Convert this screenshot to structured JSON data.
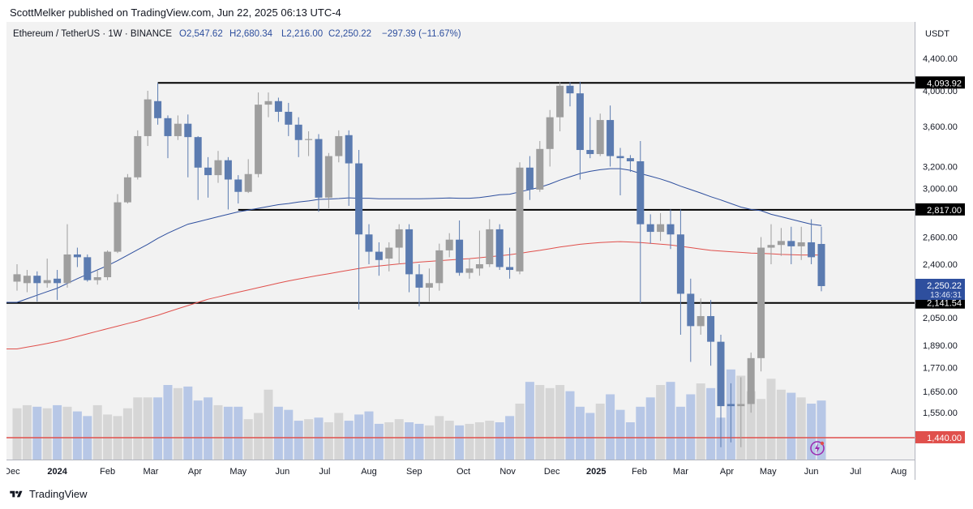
{
  "header": {
    "published": "ScottMelker published on TradingView.com, Jun 22, 2025 06:13 UTC-4"
  },
  "footer": {
    "brand": "TradingView"
  },
  "colors": {
    "up": "#9e9e9e",
    "down": "#5b7bb0",
    "ma_blue": "#2e4f9e",
    "ma_red": "#e0504c",
    "vol_up": "#d6d6d6",
    "vol_down": "#b7c7e6",
    "hline": "#000000",
    "red_line": "#e0504c"
  },
  "chart_data": {
    "type": "candlestick",
    "symbol": {
      "name": "Ethereum / TetherUS · 1W · BINANCE",
      "o": "O2,547.62",
      "h": "H2,680.34",
      "l": "L2,216.00",
      "c": "C2,250.22",
      "chg": "−297.39 (−11.67%)"
    },
    "currency": "USDT",
    "y_scale": "log",
    "ylim": [
      1350,
      4900
    ],
    "price_ticks": [
      "4,400.00",
      "4,000.00",
      "3,600.00",
      "3,200.00",
      "3,000.00",
      "2,600.00",
      "2,400.00",
      "2,050.00",
      "1,890.00",
      "1,770.00",
      "1,650.00",
      "1,550.00"
    ],
    "price_tick_values": [
      4400,
      4000,
      3600,
      3200,
      3000,
      2600,
      2400,
      2050,
      1890,
      1770,
      1650,
      1550
    ],
    "horizontal_levels": [
      {
        "label": "4,093.92",
        "value": 4093.92,
        "start_week": 14,
        "style": "black"
      },
      {
        "label": "2,817.00",
        "value": 2817,
        "start_week": 22,
        "style": "black"
      },
      {
        "label": "2,141.54",
        "value": 2141.54,
        "start_week": 0,
        "style": "black"
      },
      {
        "label": "1,440.00",
        "value": 1440,
        "start_week": 0,
        "style": "red"
      }
    ],
    "last_price": {
      "label": "2,250.22",
      "countdown": "13:46:31",
      "value": 2250.22
    },
    "x_labels": [
      {
        "label": "Dec",
        "week": -0.5,
        "bold": false
      },
      {
        "label": "2024",
        "week": 4,
        "bold": true
      },
      {
        "label": "Feb",
        "week": 9,
        "bold": false
      },
      {
        "label": "Mar",
        "week": 13.3,
        "bold": false
      },
      {
        "label": "Apr",
        "week": 17.7,
        "bold": false
      },
      {
        "label": "May",
        "week": 22,
        "bold": false
      },
      {
        "label": "Jun",
        "week": 26.4,
        "bold": false
      },
      {
        "label": "Jul",
        "week": 30.6,
        "bold": false
      },
      {
        "label": "Aug",
        "week": 35,
        "bold": false
      },
      {
        "label": "Sep",
        "week": 39.5,
        "bold": false
      },
      {
        "label": "Oct",
        "week": 44.4,
        "bold": false
      },
      {
        "label": "Nov",
        "week": 48.8,
        "bold": false
      },
      {
        "label": "Dec",
        "week": 53.2,
        "bold": false
      },
      {
        "label": "2025",
        "week": 57.6,
        "bold": true
      },
      {
        "label": "Feb",
        "week": 61.9,
        "bold": false
      },
      {
        "label": "Mar",
        "week": 66,
        "bold": false
      },
      {
        "label": "Apr",
        "week": 70.6,
        "bold": false
      },
      {
        "label": "May",
        "week": 74.7,
        "bold": false
      },
      {
        "label": "Jun",
        "week": 79,
        "bold": false
      },
      {
        "label": "Jul",
        "week": 83.4,
        "bold": false
      },
      {
        "label": "Aug",
        "week": 87.7,
        "bold": false
      }
    ],
    "candles": [
      [
        2280,
        2330,
        2220,
        2400
      ],
      [
        2270,
        2320,
        2210,
        2360
      ],
      [
        2320,
        2270,
        2150,
        2350
      ],
      [
        2270,
        2290,
        2240,
        2440
      ],
      [
        2300,
        2270,
        2160,
        2360
      ],
      [
        2270,
        2470,
        2240,
        2700
      ],
      [
        2470,
        2450,
        2380,
        2520
      ],
      [
        2450,
        2290,
        2280,
        2470
      ],
      [
        2290,
        2310,
        2260,
        2360
      ],
      [
        2310,
        2490,
        2290,
        2500
      ],
      [
        2490,
        2880,
        2480,
        2950
      ],
      [
        2880,
        3100,
        2870,
        3130
      ],
      [
        3100,
        3500,
        3080,
        3560
      ],
      [
        3500,
        3900,
        3400,
        4000
      ],
      [
        3880,
        3690,
        3620,
        4093.92
      ],
      [
        3690,
        3500,
        3280,
        3720
      ],
      [
        3500,
        3630,
        3460,
        3720
      ],
      [
        3630,
        3490,
        3100,
        3730
      ],
      [
        3490,
        3190,
        2900,
        3500
      ],
      [
        3190,
        3120,
        2920,
        3290
      ],
      [
        3120,
        3260,
        3050,
        3350
      ],
      [
        3260,
        3080,
        2820,
        3290
      ],
      [
        3080,
        2970,
        2870,
        3120
      ],
      [
        2970,
        3130,
        2960,
        3270
      ],
      [
        3130,
        3840,
        3100,
        3980
      ],
      [
        3840,
        3880,
        3700,
        3980
      ],
      [
        3880,
        3760,
        3650,
        3920
      ],
      [
        3760,
        3620,
        3500,
        3860
      ],
      [
        3620,
        3460,
        3290,
        3700
      ],
      [
        3460,
        3470,
        3300,
        3550
      ],
      [
        3470,
        2920,
        2800,
        3520
      ],
      [
        2920,
        3300,
        2830,
        3330
      ],
      [
        3300,
        3500,
        3240,
        3560
      ],
      [
        3510,
        3230,
        2850,
        3560
      ],
      [
        3230,
        2620,
        2100,
        3360
      ],
      [
        2620,
        2490,
        2400,
        2700
      ],
      [
        2490,
        2430,
        2320,
        2560
      ],
      [
        2440,
        2520,
        2350,
        2560
      ],
      [
        2520,
        2660,
        2400,
        2700
      ],
      [
        2660,
        2330,
        2210,
        2700
      ],
      [
        2330,
        2240,
        2120,
        2400
      ],
      [
        2240,
        2270,
        2150,
        2370
      ],
      [
        2270,
        2500,
        2220,
        2550
      ],
      [
        2500,
        2580,
        2450,
        2630
      ],
      [
        2580,
        2340,
        2320,
        2730
      ],
      [
        2340,
        2370,
        2300,
        2440
      ],
      [
        2370,
        2400,
        2320,
        2650
      ],
      [
        2400,
        2660,
        2380,
        2740
      ],
      [
        2660,
        2380,
        2360,
        2700
      ],
      [
        2380,
        2360,
        2300,
        2520
      ],
      [
        2350,
        3190,
        2330,
        3240
      ],
      [
        3190,
        2990,
        2900,
        3300
      ],
      [
        2990,
        3370,
        2970,
        3450
      ],
      [
        3370,
        3700,
        3200,
        3780
      ],
      [
        3700,
        4060,
        3550,
        4100
      ],
      [
        4060,
        3970,
        3820,
        4100
      ],
      [
        3970,
        3360,
        3080,
        4109
      ],
      [
        3360,
        3320,
        3280,
        3700
      ],
      [
        3320,
        3670,
        3300,
        3740
      ],
      [
        3670,
        3300,
        3200,
        3830
      ],
      [
        3300,
        3280,
        2940,
        3380
      ],
      [
        3280,
        3250,
        3150,
        3310
      ],
      [
        3250,
        2700,
        2140,
        3450
      ],
      [
        2700,
        2640,
        2550,
        2780
      ],
      [
        2640,
        2700,
        2570,
        2790
      ],
      [
        2700,
        2620,
        2510,
        2820
      ],
      [
        2620,
        2200,
        1950,
        2820
      ],
      [
        2200,
        2000,
        1800,
        2300
      ],
      [
        2000,
        2060,
        1950,
        2170
      ],
      [
        2060,
        1910,
        1780,
        2160
      ],
      [
        1910,
        1580,
        1400,
        1950
      ],
      [
        1590,
        1580,
        1420,
        1690
      ],
      [
        1580,
        1590,
        1400,
        1720
      ],
      [
        1590,
        1820,
        1550,
        1850
      ],
      [
        1820,
        2520,
        1750,
        2600
      ],
      [
        2520,
        2540,
        2400,
        2700
      ],
      [
        2540,
        2570,
        2460,
        2670
      ],
      [
        2570,
        2530,
        2400,
        2680
      ],
      [
        2530,
        2560,
        2430,
        2680
      ],
      [
        2560,
        2450,
        2400,
        2740
      ],
      [
        2547.62,
        2250.22,
        2216,
        2680.34
      ]
    ],
    "volume": [
      33,
      35,
      34,
      33,
      35,
      34,
      31,
      28,
      35,
      29,
      28,
      33,
      40,
      40,
      40,
      48,
      46,
      47,
      38,
      40,
      35,
      34,
      34,
      26,
      30,
      45,
      34,
      32,
      25,
      26,
      27,
      24,
      30,
      25,
      29,
      31,
      23,
      24,
      26,
      24,
      23,
      22,
      28,
      25,
      22,
      23,
      24,
      25,
      24,
      28,
      36,
      50,
      48,
      46,
      48,
      44,
      34,
      30,
      36,
      42,
      32,
      24,
      34,
      40,
      48,
      50,
      34,
      42,
      49,
      46,
      27,
      58,
      54,
      44,
      39,
      52,
      45,
      43,
      40,
      36,
      38
    ],
    "ma_blue": [
      2145,
      2168,
      2191,
      2214,
      2236,
      2268,
      2300,
      2330,
      2360,
      2390,
      2425,
      2465,
      2505,
      2545,
      2590,
      2630,
      2665,
      2700,
      2720,
      2740,
      2760,
      2780,
      2800,
      2815,
      2830,
      2845,
      2860,
      2870,
      2882,
      2892,
      2905,
      2908,
      2912,
      2918,
      2915,
      2915,
      2910,
      2910,
      2910,
      2910,
      2910,
      2912,
      2915,
      2917,
      2915,
      2915,
      2920,
      2932,
      2945,
      2950,
      2970,
      2990,
      3010,
      3040,
      3075,
      3105,
      3135,
      3155,
      3170,
      3180,
      3180,
      3165,
      3135,
      3110,
      3085,
      3055,
      3020,
      2990,
      2960,
      2928,
      2900,
      2870,
      2840,
      2820,
      2810,
      2780,
      2760,
      2740,
      2720,
      2700,
      2690
    ],
    "ma_red": [
      1870,
      1880,
      1890,
      1900,
      1912,
      1925,
      1940,
      1955,
      1970,
      1985,
      2000,
      2015,
      2030,
      2048,
      2065,
      2085,
      2105,
      2125,
      2145,
      2165,
      2180,
      2195,
      2210,
      2225,
      2240,
      2255,
      2270,
      2285,
      2298,
      2310,
      2322,
      2334,
      2346,
      2358,
      2370,
      2380,
      2388,
      2395,
      2402,
      2408,
      2415,
      2420,
      2425,
      2430,
      2435,
      2440,
      2446,
      2453,
      2460,
      2468,
      2478,
      2490,
      2500,
      2512,
      2525,
      2535,
      2545,
      2552,
      2558,
      2562,
      2565,
      2562,
      2558,
      2552,
      2546,
      2540,
      2530,
      2520,
      2510,
      2500,
      2495,
      2490,
      2485,
      2480,
      2478,
      2475,
      2470,
      2468,
      2466,
      2466,
      2466
    ]
  }
}
